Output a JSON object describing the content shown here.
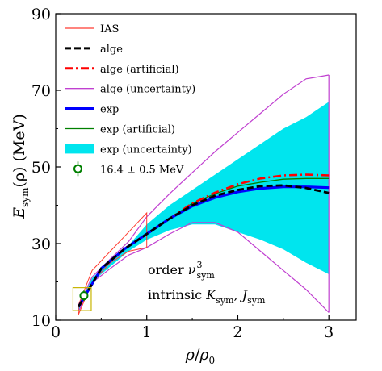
{
  "chart_data": {
    "type": "line",
    "xlabel": "ρ/ρ₀",
    "ylabel": "E_sym(ρ) (MeV)",
    "ylabel_parts": {
      "main": "E",
      "sub": "sym",
      "rest": "(ρ) (MeV)"
    },
    "xlabel_parts": {
      "rho": "ρ",
      "slash": "/",
      "rho0": "ρ",
      "sub0": "0"
    },
    "xlim": [
      0,
      3.3
    ],
    "ylim": [
      10,
      90
    ],
    "x_ticks": [
      0,
      1,
      2,
      3
    ],
    "y_ticks": [
      10,
      30,
      50,
      70,
      90
    ],
    "x_tick_labels": [
      "0",
      "1",
      "2",
      "3"
    ],
    "y_tick_labels": [
      "10",
      "30",
      "50",
      "70",
      "90"
    ],
    "grid": false,
    "legend_position": "top-left",
    "legend": [
      {
        "label": "IAS",
        "color": "#ff3b30",
        "style": "thin-line"
      },
      {
        "label": "alge",
        "color": "#000000",
        "style": "dashed"
      },
      {
        "label": "alge (artificial)",
        "color": "#ff0000",
        "style": "dashdot"
      },
      {
        "label": "alge (uncertainty)",
        "color": "#c040d0",
        "style": "thin-line"
      },
      {
        "label": "exp",
        "color": "#0000ff",
        "style": "thick-line"
      },
      {
        "label": "exp (artificial)",
        "color": "#008000",
        "style": "thin-line"
      },
      {
        "label": "exp (uncertainty)",
        "color": "#00e5ee",
        "style": "fill"
      },
      {
        "label": "16.4 ± 0.5 MeV",
        "color": "#008000",
        "style": "errorbar-marker"
      }
    ],
    "annotations": {
      "line1_prefix": "order ",
      "line1_nu": "ν",
      "line1_sub": "sym",
      "line1_sup": "3",
      "line2_prefix": "intrinsic ",
      "line2_K": "K",
      "line2_Ksub": "sym",
      "line2_sep": ", ",
      "line2_J": "J",
      "line2_Jsub": "sym"
    },
    "series": [
      {
        "name": "exp (uncertainty)",
        "type": "band",
        "color": "#00e5ee",
        "x": [
          0.25,
          0.4,
          0.6,
          0.8,
          1.0,
          1.25,
          1.5,
          1.75,
          2.0,
          2.25,
          2.5,
          2.75,
          3.0
        ],
        "upper": [
          13.5,
          21,
          25.5,
          29.5,
          35,
          40,
          44,
          48,
          52,
          56,
          60,
          63,
          67
        ],
        "lower": [
          12.5,
          20,
          24,
          28,
          31,
          33.5,
          35,
          35,
          33,
          31,
          28.5,
          25,
          22
        ]
      },
      {
        "name": "alge (uncertainty)",
        "type": "line",
        "color": "#c040d0",
        "x": [
          0.25,
          0.4,
          0.6,
          0.8,
          1.0,
          1.25,
          1.5,
          1.75,
          2.0,
          2.25,
          2.5,
          2.75,
          3.0
        ],
        "upper_y": [
          13.7,
          21.3,
          26,
          30.5,
          37,
          43,
          48.5,
          54,
          59,
          64,
          69,
          73,
          74
        ],
        "lower_y": [
          12.3,
          19.8,
          23.5,
          27,
          29,
          32.5,
          35.5,
          35.5,
          33,
          28,
          23,
          18,
          12
        ]
      },
      {
        "name": "IAS",
        "type": "polygon",
        "color": "#ff3b30",
        "x": [
          0.25,
          0.4,
          0.6,
          0.8,
          1.0,
          1.0,
          0.8,
          0.6,
          0.4,
          0.25
        ],
        "y": [
          14,
          23,
          28,
          33,
          38,
          29,
          28,
          25,
          20,
          11.5
        ]
      },
      {
        "name": "exp (artificial)",
        "type": "line",
        "color": "#008000",
        "x": [
          0.25,
          0.5,
          0.75,
          1.0,
          1.25,
          1.5,
          1.75,
          2.0,
          2.25,
          2.5,
          2.75,
          3.0
        ],
        "y": [
          13.5,
          23.5,
          28.5,
          32.5,
          36.5,
          40.5,
          43,
          45,
          46,
          46.8,
          47,
          47
        ]
      },
      {
        "name": "alge (artificial)",
        "type": "line",
        "color": "#ff0000",
        "x": [
          0.25,
          0.5,
          0.75,
          1.0,
          1.25,
          1.5,
          1.75,
          2.0,
          2.25,
          2.5,
          2.75,
          3.0
        ],
        "y": [
          13.5,
          23.5,
          28.5,
          32.5,
          36.5,
          40.5,
          43.3,
          45.5,
          47,
          47.8,
          48,
          47.8
        ]
      },
      {
        "name": "exp",
        "type": "line",
        "color": "#0000ff",
        "x": [
          0.25,
          0.5,
          0.75,
          1.0,
          1.25,
          1.5,
          1.75,
          2.0,
          2.25,
          2.5,
          2.75,
          3.0
        ],
        "y": [
          13.5,
          23.5,
          28.5,
          32.5,
          36.5,
          39.8,
          42,
          43.5,
          44.4,
          44.8,
          44.8,
          44.6
        ]
      },
      {
        "name": "alge",
        "type": "line",
        "color": "#000000",
        "x": [
          0.25,
          0.5,
          0.75,
          1.0,
          1.25,
          1.5,
          1.75,
          2.0,
          2.25,
          2.5,
          2.75,
          3.0
        ],
        "y": [
          13.5,
          23.5,
          28.5,
          32.5,
          36.5,
          40,
          42.5,
          44,
          45,
          45.2,
          44.5,
          43.2
        ]
      },
      {
        "name": "16.4 ± 0.5 MeV",
        "type": "errorbar",
        "color": "#008000",
        "x": [
          0.31
        ],
        "y": [
          16.4
        ],
        "err": [
          0.5
        ]
      }
    ],
    "highlight_box": {
      "x": [
        0.19,
        0.39
      ],
      "y": [
        12.5,
        18.5
      ],
      "color": "#c8b400"
    }
  }
}
